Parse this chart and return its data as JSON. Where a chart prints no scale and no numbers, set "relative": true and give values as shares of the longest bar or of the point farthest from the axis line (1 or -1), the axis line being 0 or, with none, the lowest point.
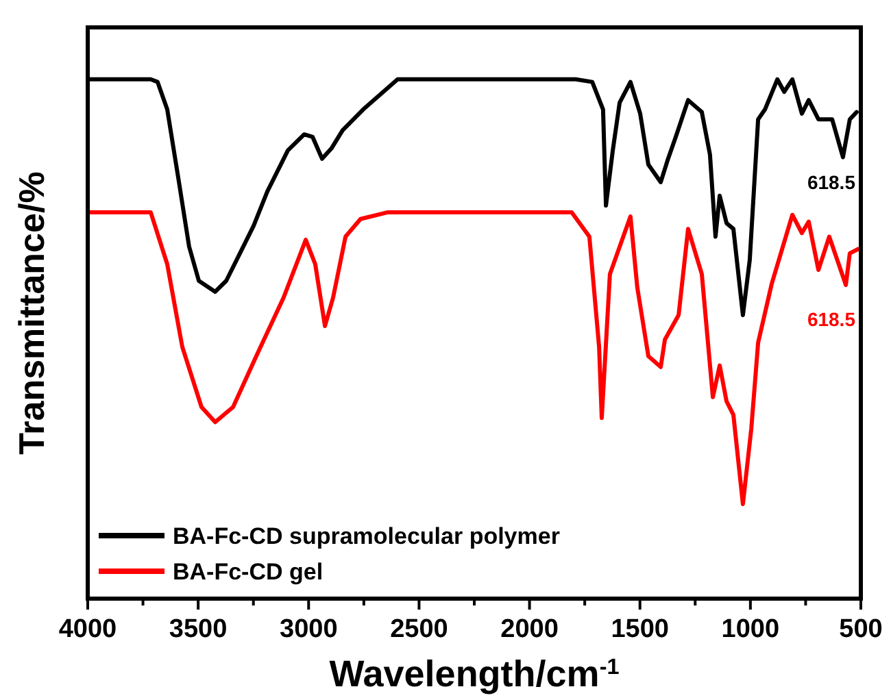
{
  "chart_data": {
    "type": "line",
    "relative": true,
    "xlabel": "Wavelength/cm$^{-1}$",
    "ylabel": "Transmittance/%",
    "xlim": [
      4000,
      500
    ],
    "xticks": [
      4000,
      {
        "value": 3750,
        "label": null
      },
      3500,
      {
        "value": 3250,
        "label": null
      },
      3000,
      {
        "value": 2750,
        "label": null
      },
      2500,
      {
        "value": 2250,
        "label": null
      },
      2000,
      {
        "value": 1750,
        "label": null
      },
      1500,
      {
        "value": 1250,
        "label": null
      },
      1000,
      {
        "value": 750,
        "label": null
      },
      500
    ],
    "grid": false,
    "legend": "bottom left",
    "tick_labels": "x",
    "line_style": "solid",
    "series": [
      {
        "name": "BA-Fc-CD supramolecular polymer",
        "color": "#000000",
        "x": [
          4000,
          3715,
          3684,
          3640,
          3590,
          3541,
          3497,
          3423,
          3373,
          3311,
          3249,
          3187,
          3094,
          3020,
          2982,
          2939,
          2895,
          2846,
          2753,
          2597,
          1791,
          1716,
          1667,
          1654,
          1623,
          1592,
          1543,
          1499,
          1462,
          1406,
          1375,
          1338,
          1282,
          1220,
          1183,
          1158,
          1139,
          1108,
          1077,
          1034,
          1003,
          965,
          934,
          878,
          847,
          810,
          767,
          736,
          692,
          630,
          581,
          550,
          519
        ],
        "values": [
          1.0,
          1.0,
          0.995,
          0.942,
          0.81,
          0.678,
          0.612,
          0.591,
          0.612,
          0.665,
          0.718,
          0.784,
          0.863,
          0.894,
          0.889,
          0.847,
          0.868,
          0.902,
          0.942,
          1.0,
          1.0,
          0.995,
          0.942,
          0.757,
          0.863,
          0.955,
          0.995,
          0.934,
          0.836,
          0.802,
          0.844,
          0.889,
          0.96,
          0.937,
          0.855,
          0.697,
          0.776,
          0.723,
          0.712,
          0.546,
          0.652,
          0.923,
          0.942,
          1.0,
          0.976,
          1.0,
          0.934,
          0.96,
          0.923,
          0.923,
          0.85,
          0.923,
          0.937
        ]
      },
      {
        "name": "BA-Fc-CD gel",
        "color": "#ff0000",
        "x": [
          4000,
          3715,
          3640,
          3572,
          3485,
          3423,
          3342,
          3237,
          3113,
          3013,
          2970,
          2926,
          2889,
          2833,
          2765,
          2641,
          1809,
          1729,
          1685,
          1673,
          1636,
          1543,
          1512,
          1462,
          1406,
          1387,
          1325,
          1282,
          1220,
          1170,
          1139,
          1108,
          1077,
          1034,
          996,
          965,
          903,
          810,
          767,
          736,
          692,
          643,
          568,
          550,
          513
        ],
        "values": [
          0.744,
          0.744,
          0.644,
          0.485,
          0.369,
          0.34,
          0.369,
          0.467,
          0.58,
          0.691,
          0.644,
          0.525,
          0.58,
          0.697,
          0.731,
          0.744,
          0.744,
          0.697,
          0.485,
          0.348,
          0.625,
          0.736,
          0.599,
          0.467,
          0.446,
          0.499,
          0.546,
          0.712,
          0.625,
          0.388,
          0.449,
          0.38,
          0.354,
          0.182,
          0.327,
          0.493,
          0.607,
          0.739,
          0.704,
          0.726,
          0.633,
          0.697,
          0.604,
          0.665,
          0.673
        ]
      }
    ],
    "annotations": [
      "618.5",
      "618.5"
    ]
  }
}
